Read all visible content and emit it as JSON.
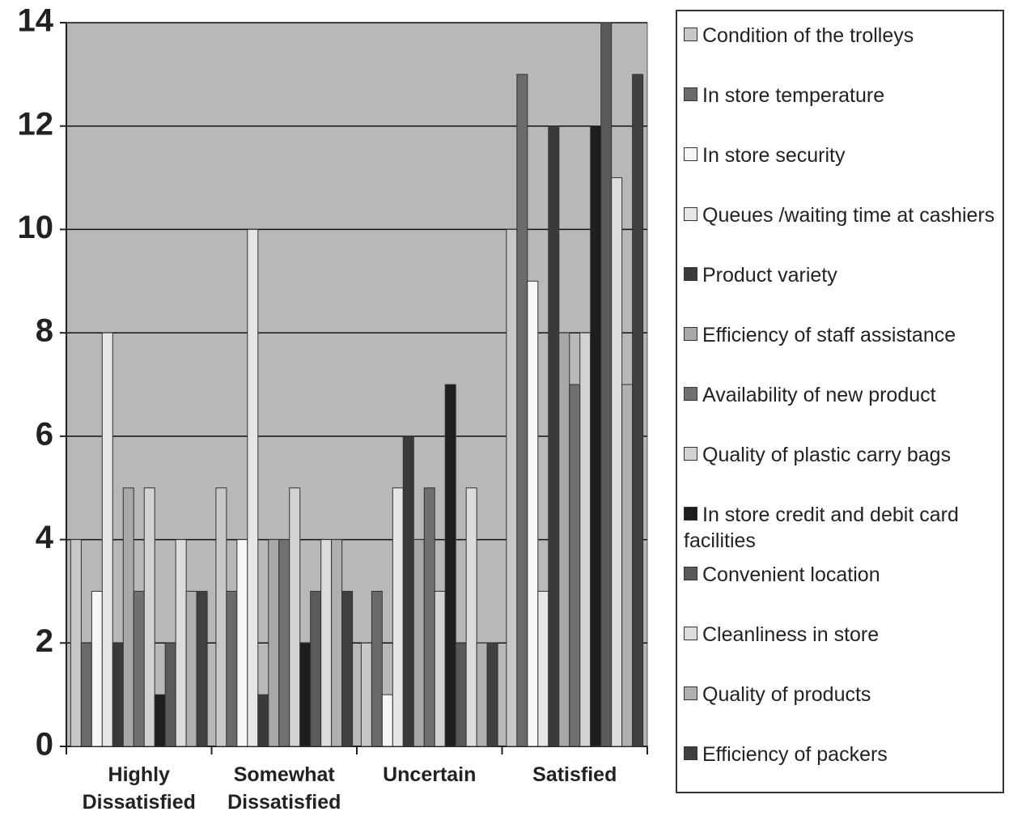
{
  "chart_data": {
    "type": "bar",
    "categories": [
      "Highly Dissatisfied",
      "Somewhat Dissatisfied",
      "Uncertain",
      "Satisfied"
    ],
    "series": [
      {
        "name": "Condition of the trolleys",
        "color": "#c8c8c8",
        "values": [
          4,
          5,
          2,
          10
        ]
      },
      {
        "name": "In store temperature",
        "color": "#6a6a6a",
        "values": [
          2,
          3,
          3,
          13
        ]
      },
      {
        "name": "In store  security",
        "color": "#f6f6f6",
        "values": [
          3,
          4,
          1,
          9
        ]
      },
      {
        "name": "Queues /waiting time at cashiers",
        "color": "#e6e6e6",
        "values": [
          8,
          10,
          5,
          3
        ]
      },
      {
        "name": "Product variety",
        "color": "#3a3a3a",
        "values": [
          2,
          1,
          6,
          12
        ]
      },
      {
        "name": "Efficiency of staff assistance",
        "color": "#a8a8a8",
        "values": [
          5,
          4,
          4,
          8
        ]
      },
      {
        "name": "Availability of new product",
        "color": "#707070",
        "values": [
          3,
          4,
          5,
          7
        ]
      },
      {
        "name": "Quality of plastic carry bags",
        "color": "#d2d2d2",
        "values": [
          5,
          5,
          3,
          8
        ]
      },
      {
        "name": "In store credit and debit card facilities",
        "color": "#1e1e1e",
        "values": [
          1,
          2,
          7,
          12
        ]
      },
      {
        "name": "Convenient  location",
        "color": "#5a5a5a",
        "values": [
          2,
          3,
          2,
          14
        ]
      },
      {
        "name": "Cleanliness in store",
        "color": "#dcdcdc",
        "values": [
          4,
          4,
          5,
          11
        ]
      },
      {
        "name": "Quality of products",
        "color": "#b0b0b0",
        "values": [
          3,
          4,
          2,
          7
        ]
      },
      {
        "name": "Efficiency of packers",
        "color": "#404040",
        "values": [
          3,
          3,
          2,
          13
        ]
      }
    ],
    "ylim": [
      0,
      14
    ],
    "yticks": [
      0,
      2,
      4,
      6,
      8,
      10,
      12,
      14
    ],
    "grid": true
  }
}
